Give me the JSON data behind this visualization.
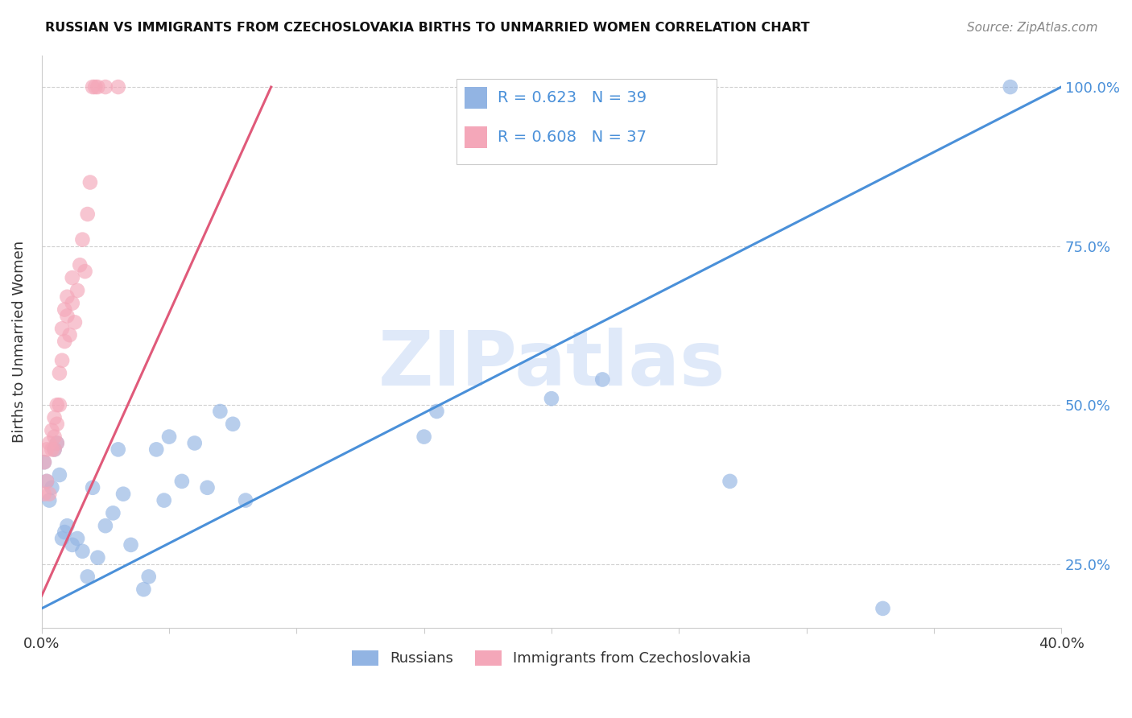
{
  "title": "RUSSIAN VS IMMIGRANTS FROM CZECHOSLOVAKIA BIRTHS TO UNMARRIED WOMEN CORRELATION CHART",
  "source": "Source: ZipAtlas.com",
  "ylabel": "Births to Unmarried Women",
  "legend_label1": "Russians",
  "legend_label2": "Immigrants from Czechoslovakia",
  "r1": 0.623,
  "n1": 39,
  "r2": 0.608,
  "n2": 37,
  "color1": "#92b4e3",
  "color2": "#f4a7b9",
  "line_color1": "#4a90d9",
  "line_color2": "#e05a7a",
  "watermark": "ZIPatlas",
  "xlim": [
    0.0,
    0.4
  ],
  "ylim": [
    0.15,
    1.05
  ],
  "ytick_values": [
    0.25,
    0.5,
    0.75,
    1.0
  ],
  "blue_line_x": [
    0.0,
    0.4
  ],
  "blue_line_y": [
    0.18,
    1.0
  ],
  "pink_line_x": [
    0.0,
    0.09
  ],
  "pink_line_y": [
    0.2,
    1.0
  ],
  "russians_x": [
    0.001,
    0.002,
    0.003,
    0.004,
    0.005,
    0.006,
    0.007,
    0.008,
    0.009,
    0.01,
    0.012,
    0.014,
    0.016,
    0.018,
    0.02,
    0.022,
    0.025,
    0.028,
    0.03,
    0.032,
    0.035,
    0.04,
    0.042,
    0.045,
    0.048,
    0.05,
    0.055,
    0.06,
    0.065,
    0.07,
    0.075,
    0.08,
    0.15,
    0.155,
    0.2,
    0.22,
    0.27,
    0.33,
    0.38
  ],
  "russians_y": [
    0.41,
    0.38,
    0.35,
    0.37,
    0.43,
    0.44,
    0.39,
    0.29,
    0.3,
    0.31,
    0.28,
    0.29,
    0.27,
    0.23,
    0.37,
    0.26,
    0.31,
    0.33,
    0.43,
    0.36,
    0.28,
    0.21,
    0.23,
    0.43,
    0.35,
    0.45,
    0.38,
    0.44,
    0.37,
    0.49,
    0.47,
    0.35,
    0.45,
    0.49,
    0.51,
    0.54,
    0.38,
    0.18,
    1.0
  ],
  "czech_x": [
    0.001,
    0.001,
    0.002,
    0.002,
    0.003,
    0.003,
    0.004,
    0.004,
    0.005,
    0.005,
    0.005,
    0.006,
    0.006,
    0.006,
    0.007,
    0.007,
    0.008,
    0.008,
    0.009,
    0.009,
    0.01,
    0.01,
    0.011,
    0.012,
    0.012,
    0.013,
    0.014,
    0.015,
    0.016,
    0.017,
    0.018,
    0.019,
    0.02,
    0.021,
    0.022,
    0.025,
    0.03
  ],
  "czech_y": [
    0.36,
    0.41,
    0.38,
    0.43,
    0.36,
    0.44,
    0.43,
    0.46,
    0.43,
    0.45,
    0.48,
    0.44,
    0.47,
    0.5,
    0.5,
    0.55,
    0.57,
    0.62,
    0.6,
    0.65,
    0.64,
    0.67,
    0.61,
    0.66,
    0.7,
    0.63,
    0.68,
    0.72,
    0.76,
    0.71,
    0.8,
    0.85,
    1.0,
    1.0,
    1.0,
    1.0,
    1.0
  ]
}
